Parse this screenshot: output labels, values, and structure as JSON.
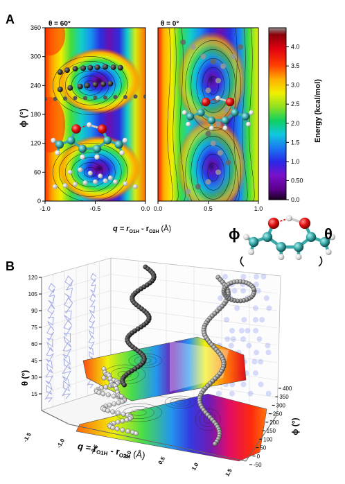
{
  "panel_a": {
    "label": "A",
    "left_title": "θ = 60°",
    "right_title": "θ = 0°",
    "y_label": "ϕ (°)",
    "x_label_main": "q = r",
    "x_label_sub1": "O1H",
    "x_label_mid": " - r",
    "x_label_sub2": "O2H",
    "x_label_unit": " (Å)",
    "colorbar_label": "Energy (kcal/mol)"
  },
  "panel_b": {
    "label": "B",
    "theta_axis_label": "θ (°)",
    "phi_axis_label": "ϕ (°)",
    "q_axis_main": "q = r",
    "q_sub1": "O1H",
    "q_mid": " - r",
    "q_sub2": "O2H",
    "q_unit": " (Å)"
  },
  "molecule": {
    "phi_symbol": "ϕ",
    "theta_symbol": "θ"
  },
  "chart_data": [
    {
      "type": "heatmap",
      "panel": "A-left",
      "title": "θ = 60°",
      "xlabel": "q = rO1H - rO2H (Å)",
      "ylabel": "ϕ (°)",
      "xlim": [
        -1.0,
        0.0
      ],
      "ylim": [
        0,
        360
      ],
      "x_ticks": [
        "-1.0",
        "-0.5",
        "0.0"
      ],
      "y_ticks": [
        "0",
        "60",
        "120",
        "180",
        "240",
        "300",
        "360"
      ],
      "minima": [
        {
          "q": -0.55,
          "phi": 60
        },
        {
          "q": -0.55,
          "phi": 240
        }
      ],
      "trajectory_dark": [
        [
          -0.85,
          268
        ],
        [
          -0.78,
          272
        ],
        [
          -0.7,
          275
        ],
        [
          -0.62,
          276
        ],
        [
          -0.55,
          277
        ],
        [
          -0.48,
          278
        ],
        [
          -0.4,
          279
        ],
        [
          -0.32,
          278
        ],
        [
          -0.25,
          277
        ],
        [
          -0.85,
          232
        ],
        [
          -0.75,
          235
        ],
        [
          -0.65,
          238
        ],
        [
          -0.58,
          240
        ],
        [
          -0.5,
          242
        ],
        [
          -0.42,
          243
        ],
        [
          -0.35,
          244
        ]
      ],
      "trajectory_grey": [
        [
          -1.0,
          212
        ],
        [
          -0.9,
          212
        ],
        [
          -0.8,
          213
        ],
        [
          -0.7,
          214
        ],
        [
          -0.6,
          214
        ],
        [
          -0.5,
          215
        ],
        [
          -0.4,
          215
        ],
        [
          -0.3,
          216
        ],
        [
          -0.2,
          216
        ],
        [
          -0.1,
          217
        ],
        [
          0.0,
          217
        ]
      ],
      "trajectory_light": [
        [
          -0.9,
          30
        ],
        [
          -0.8,
          32
        ],
        [
          -0.7,
          35
        ],
        [
          -0.6,
          38
        ],
        [
          -0.5,
          40
        ],
        [
          -0.4,
          42
        ],
        [
          -0.3,
          40
        ],
        [
          -0.2,
          36
        ],
        [
          -0.1,
          30
        ],
        [
          -0.75,
          60
        ],
        [
          -0.65,
          65
        ],
        [
          -0.55,
          58
        ],
        [
          -0.45,
          52
        ],
        [
          -0.35,
          48
        ]
      ]
    },
    {
      "type": "heatmap",
      "panel": "A-right",
      "title": "θ = 0°",
      "xlabel": "q = rO1H - rO2H (Å)",
      "ylabel": "",
      "xlim": [
        0.0,
        1.0
      ],
      "ylim": [
        0,
        360
      ],
      "x_ticks": [
        "0.0",
        "0.5",
        "1.0"
      ],
      "minima": [
        {
          "q": 0.55,
          "phi": 60
        },
        {
          "q": 0.55,
          "phi": 240
        }
      ],
      "trajectory_grey": [
        [
          0.25,
          330
        ],
        [
          0.35,
          320
        ],
        [
          0.45,
          300
        ],
        [
          0.55,
          290
        ],
        [
          0.65,
          280
        ],
        [
          0.75,
          300
        ],
        [
          0.82,
          320
        ],
        [
          0.6,
          250
        ],
        [
          0.5,
          230
        ],
        [
          0.58,
          210
        ],
        [
          0.68,
          190
        ],
        [
          0.6,
          160
        ],
        [
          0.5,
          140
        ],
        [
          0.55,
          120
        ],
        [
          0.62,
          100
        ],
        [
          0.7,
          80
        ],
        [
          0.6,
          60
        ],
        [
          0.5,
          40
        ],
        [
          0.4,
          30
        ],
        [
          0.3,
          20
        ]
      ]
    },
    {
      "type": "colorbar",
      "label": "Energy (kcal/mol)",
      "ticks": [
        "0.0",
        "0.50",
        "1.0",
        "1.5",
        "2.0",
        "2.5",
        "3.0",
        "3.5",
        "4.0"
      ],
      "range": [
        0.0,
        4.5
      ]
    },
    {
      "type": "scatter",
      "panel": "B",
      "xlabel": "q = rO1H - rO2H (Å)",
      "ylabel": "ϕ (°)",
      "zlabel": "θ (°)",
      "q_ticks": [
        "-1.5",
        "-1.0",
        "-0.5",
        "0.0",
        "0.5",
        "1.0",
        "1.5"
      ],
      "phi_ticks": [
        "-50",
        "0",
        "50",
        "100",
        "150",
        "200",
        "250",
        "300",
        "350",
        "400"
      ],
      "theta_ticks": [
        "15",
        "30",
        "45",
        "60",
        "75",
        "90",
        "105",
        "120"
      ],
      "xlim": [
        -1.5,
        1.5
      ],
      "ylim": [
        -50,
        400
      ],
      "zlim": [
        0,
        120
      ]
    }
  ]
}
